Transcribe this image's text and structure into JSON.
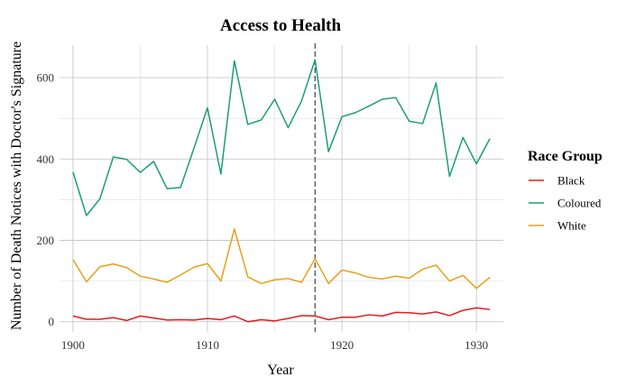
{
  "chart_data": {
    "type": "line",
    "title": "Access to Health",
    "xlabel": "Year",
    "ylabel": "Number of Death Notices with Doctor's Signature",
    "xlim": [
      1899,
      1932
    ],
    "ylim": [
      -25,
      680
    ],
    "x_ticks": [
      1900,
      1910,
      1920,
      1930
    ],
    "y_ticks": [
      0,
      200,
      400,
      600
    ],
    "grid": true,
    "vline": {
      "x": 1918,
      "style": "dashed",
      "color": "#333333"
    },
    "legend": {
      "title": "Race Group",
      "placement": "right"
    },
    "x": [
      1900,
      1901,
      1902,
      1903,
      1904,
      1905,
      1906,
      1907,
      1908,
      1909,
      1910,
      1911,
      1912,
      1913,
      1914,
      1915,
      1916,
      1917,
      1918,
      1919,
      1920,
      1921,
      1922,
      1923,
      1924,
      1925,
      1926,
      1927,
      1928,
      1929,
      1930,
      1931
    ],
    "series": [
      {
        "name": "Black",
        "color": "#e41a1c",
        "values": [
          14,
          6,
          6,
          10,
          3,
          14,
          9,
          4,
          5,
          4,
          8,
          5,
          14,
          0,
          5,
          2,
          8,
          15,
          14,
          5,
          11,
          11,
          17,
          14,
          23,
          22,
          19,
          24,
          15,
          28,
          34,
          30
        ]
      },
      {
        "name": "Coloured",
        "color": "#1b9e77",
        "values": [
          368,
          261,
          302,
          405,
          399,
          367,
          394,
          327,
          330,
          427,
          526,
          363,
          641,
          485,
          496,
          547,
          477,
          543,
          644,
          418,
          504,
          514,
          530,
          547,
          551,
          493,
          487,
          587,
          357,
          453,
          388,
          450
        ]
      },
      {
        "name": "White",
        "color": "#e6a118",
        "values": [
          153,
          98,
          135,
          142,
          133,
          112,
          105,
          97,
          115,
          134,
          143,
          100,
          228,
          110,
          94,
          103,
          106,
          97,
          155,
          94,
          127,
          120,
          109,
          105,
          112,
          107,
          129,
          139,
          100,
          114,
          82,
          109
        ]
      }
    ]
  }
}
